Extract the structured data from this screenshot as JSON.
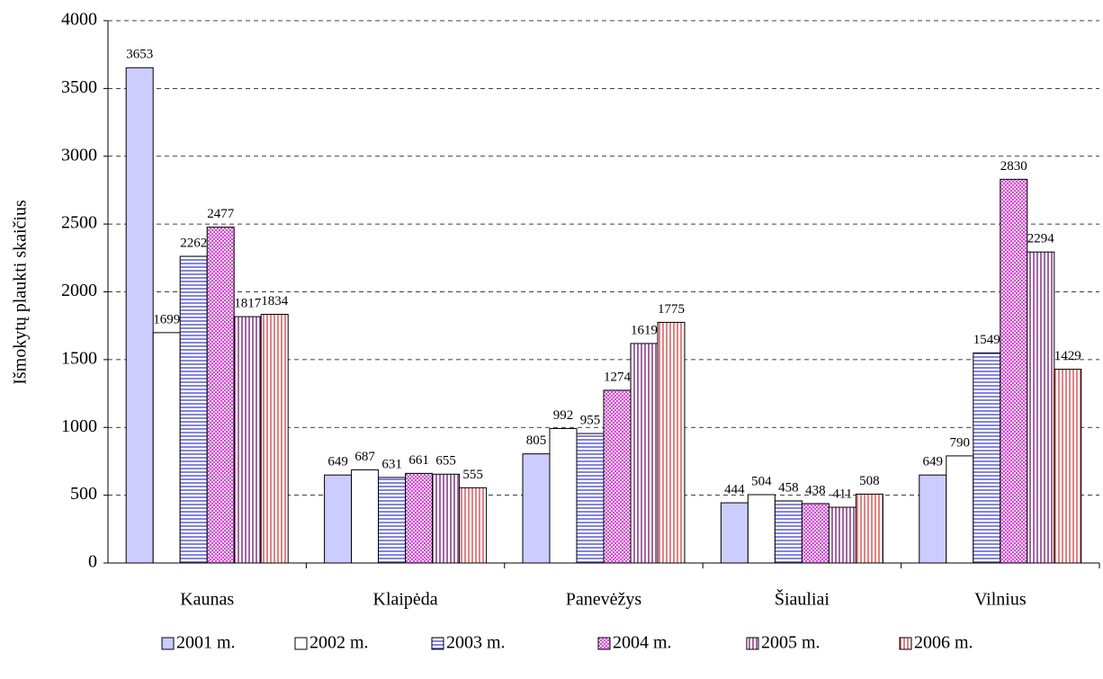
{
  "chart_data": {
    "type": "bar",
    "y_label": "Išmokytų plaukti skaičius",
    "categories": [
      "Kaunas",
      "Klaipėda",
      "Panevėžys",
      "Šiauliai",
      "Vilnius"
    ],
    "series": [
      {
        "name": "2001 m.",
        "color": "#ccccff",
        "pattern": "solid",
        "values": [
          3653,
          649,
          805,
          444,
          649
        ]
      },
      {
        "name": "2002 m.",
        "color": "#ffffff",
        "pattern": "solid",
        "values": [
          1699,
          687,
          992,
          504,
          790
        ]
      },
      {
        "name": "2003 m.",
        "color": "#3333cc",
        "pattern": "horizontal",
        "values": [
          2262,
          631,
          955,
          458,
          1549
        ]
      },
      {
        "name": "2004 m.",
        "color": "#cc33cc",
        "pattern": "crosshatch",
        "values": [
          2477,
          661,
          1274,
          438,
          2830
        ]
      },
      {
        "name": "2005 m.",
        "color": "#660066",
        "pattern": "vertical",
        "values": [
          1817,
          655,
          1619,
          411,
          2294
        ]
      },
      {
        "name": "2006 m.",
        "color": "#cc3333",
        "pattern": "vertical",
        "values": [
          1834,
          555,
          1775,
          508,
          1429
        ]
      }
    ],
    "ylim": [
      0,
      4000
    ],
    "yticks": [
      0,
      500,
      1000,
      1500,
      2000,
      2500,
      3000,
      3500,
      4000
    ],
    "grid": true,
    "legend": "bottom"
  }
}
